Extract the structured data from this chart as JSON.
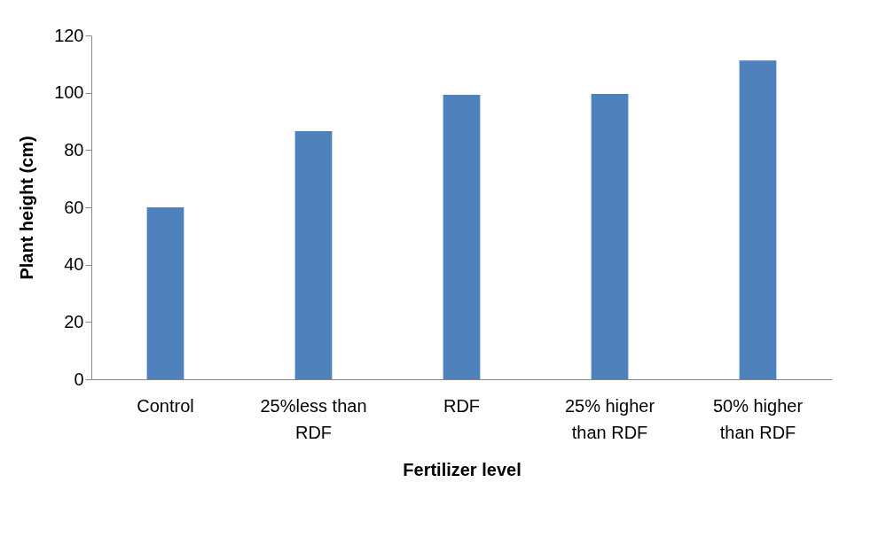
{
  "chart_data": {
    "type": "bar",
    "xlabel": "Fertilizer level",
    "ylabel": "Plant  height (cm)",
    "categories": [
      "Control",
      "25%less than RDF",
      "RDF",
      "25% higher than RDF",
      "50% higher than RDF"
    ],
    "values": [
      60,
      86.6,
      99.3,
      99.6,
      111.3
    ],
    "color": "#4f81bd",
    "ylim": [
      0,
      120
    ],
    "yticks": [
      0,
      20,
      40,
      60,
      80,
      100,
      120
    ],
    "grid": false
  }
}
